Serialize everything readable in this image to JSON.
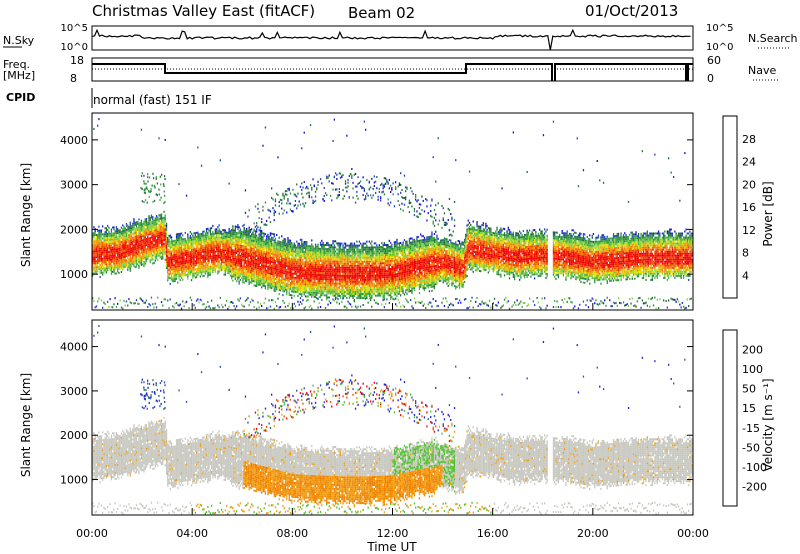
{
  "header": {
    "station": "Christmas Valley East (fitACF)",
    "beam": "Beam 02",
    "date": "01/Oct/2013"
  },
  "params": {
    "nsky_label": "N.Sky",
    "nsky_ticks": [
      "10^5",
      "10^0"
    ],
    "nsearch_label": "N.Search",
    "nsearch_ticks": [
      "10^5",
      "10^0"
    ],
    "freq_label": "Freq.",
    "freq_unit": "[MHz]",
    "freq_ticks": [
      "18",
      "8"
    ],
    "nave_label": "Nave",
    "nave_ticks": [
      "60",
      "0"
    ],
    "cpid_label": "CPID",
    "cpid_value": "normal (fast) 151 IF"
  },
  "colors": {
    "power": [
      "#1010d0",
      "#2040c0",
      "#207030",
      "#308848",
      "#40b040",
      "#80d040",
      "#e0e000",
      "#f0a000",
      "#f07000",
      "#f04000",
      "#f00000"
    ],
    "velocity": [
      "#2020d0",
      "#3050b0",
      "#208040",
      "#50c030",
      "#c8c8c0",
      "#f0a010",
      "#f08000",
      "#f05000",
      "#f00000"
    ]
  },
  "chart_data": [
    {
      "type": "heatmap",
      "panel": "power",
      "xlabel": "",
      "ylabel": "Slant Range [km]",
      "yticks": [
        "1000",
        "2000",
        "3000",
        "4000"
      ],
      "ylim": [
        200,
        4600
      ],
      "colorbar_label": "Power [dB]",
      "colorbar_ticks": [
        "4",
        "8",
        "12",
        "16",
        "20",
        "24",
        "28"
      ],
      "band_center_km": [
        [
          0,
          1500
        ],
        [
          1,
          1550
        ],
        [
          2,
          1750
        ],
        [
          2.9,
          1900
        ],
        [
          3,
          1350
        ],
        [
          4,
          1450
        ],
        [
          5,
          1550
        ],
        [
          6,
          1450
        ],
        [
          7,
          1300
        ],
        [
          8,
          1150
        ],
        [
          9,
          1120
        ],
        [
          10,
          1100
        ],
        [
          11,
          1100
        ],
        [
          12,
          1120
        ],
        [
          13,
          1250
        ],
        [
          14,
          1350
        ],
        [
          14.8,
          1200
        ],
        [
          15,
          1650
        ],
        [
          16,
          1550
        ],
        [
          17,
          1450
        ],
        [
          18,
          1500
        ],
        [
          18.3,
          1480
        ],
        [
          19,
          1450
        ],
        [
          20,
          1350
        ],
        [
          21,
          1400
        ],
        [
          22,
          1450
        ],
        [
          23,
          1450
        ],
        [
          24,
          1450
        ]
      ]
    },
    {
      "type": "heatmap",
      "panel": "velocity",
      "xlabel": "Time UT",
      "ylabel": "Slant Range [km]",
      "xticks": [
        "00:00",
        "04:00",
        "08:00",
        "12:00",
        "16:00",
        "20:00",
        "00:00"
      ],
      "yticks": [
        "1000",
        "2000",
        "3000",
        "4000"
      ],
      "ylim": [
        200,
        4600
      ],
      "colorbar_label": "Velocity [m s⁻¹]",
      "colorbar_ticks": [
        "200",
        "100",
        "50",
        "15",
        "-15",
        "-50",
        "-100",
        "-200"
      ]
    }
  ]
}
